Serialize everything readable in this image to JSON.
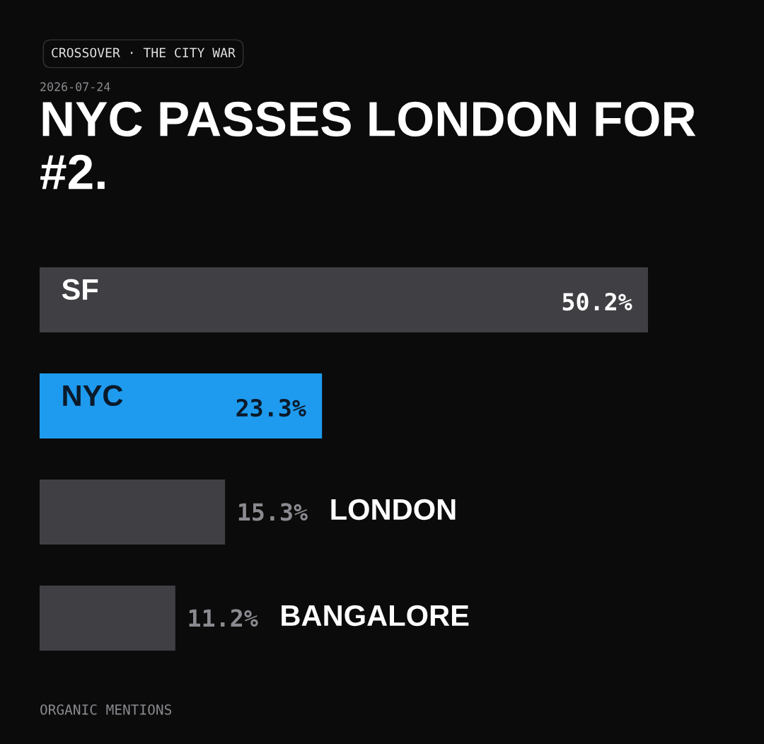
{
  "chart_data": {
    "type": "bar",
    "orientation": "horizontal",
    "title": "NYC PASSES LONDON FOR #2.",
    "categories": [
      "SF",
      "NYC",
      "LONDON",
      "BANGALORE"
    ],
    "values": [
      50.2,
      23.3,
      15.3,
      11.2
    ],
    "colors": [
      "#3f3f44",
      "#1e9bef",
      "#3f3f44",
      "#3f3f44"
    ],
    "value_labels": [
      "50.2%",
      "23.3%",
      "15.3%",
      "11.2%"
    ],
    "tick_labels": false,
    "annotations": [
      "CROSSOVER · THE CITY WAR",
      "2026-07-24",
      "ORGANIC MENTIONS"
    ]
  }
}
